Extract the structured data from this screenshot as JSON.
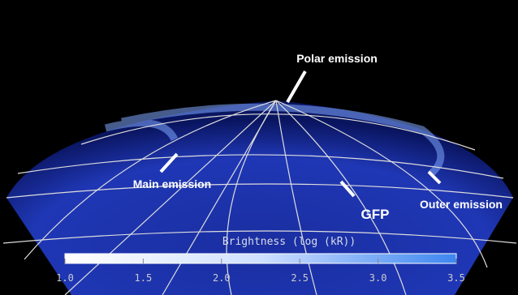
{
  "annotations": [
    "Polar emission",
    "Main emission",
    "GFP",
    "Outer emission"
  ],
  "colorbar": {
    "title": "Brightness (log (kR))",
    "lim": [
      1.0,
      3.5
    ],
    "ticks": [
      {
        "value": 1.0,
        "label": "1.0"
      },
      {
        "value": 1.5,
        "label": "1.5"
      },
      {
        "value": 2.0,
        "label": "2.0"
      },
      {
        "value": 2.5,
        "label": "2.5"
      },
      {
        "value": 3.0,
        "label": "3.0"
      },
      {
        "value": 3.5,
        "label": "3.5"
      }
    ]
  }
}
